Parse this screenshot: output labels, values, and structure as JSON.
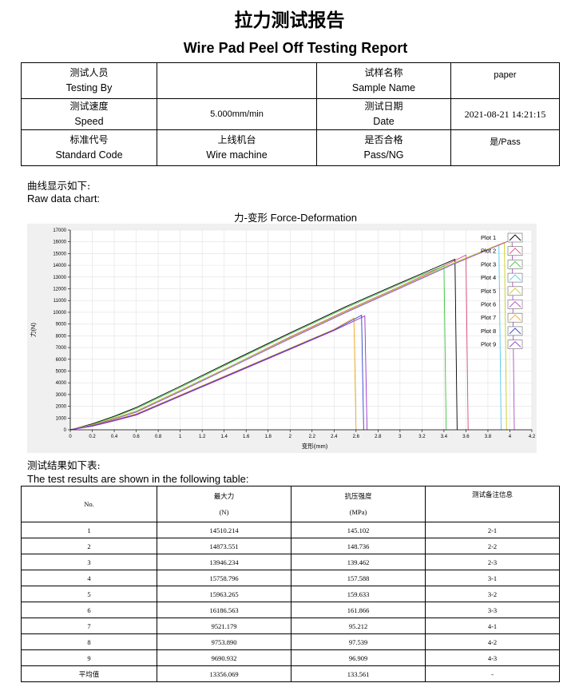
{
  "report": {
    "title_cn": "拉力测试报告",
    "title_en": "Wire Pad Peel Off Testing Report"
  },
  "info": {
    "tester_label_cn": "测试人员",
    "tester_label_en": "Testing By",
    "tester_value": "",
    "sample_label_cn": "试样名称",
    "sample_label_en": "Sample Name",
    "sample_value": "paper",
    "speed_label_cn": "测试速度",
    "speed_label_en": "Speed",
    "speed_value": "5.000mm/min",
    "date_label_cn": "测试日期",
    "date_label_en": "Date",
    "date_value": "2021-08-21 14:21:15",
    "code_label_cn": "标准代号",
    "code_label_en": "Standard Code",
    "machine_label_cn": "上线机台",
    "machine_label_en": "Wire machine",
    "pass_label_cn": "是否合格",
    "pass_label_en": "Pass/NG",
    "pass_value": "是/Pass"
  },
  "sections": {
    "chart_heading_cn": "曲线显示如下:",
    "chart_heading_en": "Raw data chart:",
    "table_heading_cn": "测试结果如下表:",
    "table_heading_en": "The test results are shown in the following table:"
  },
  "chart_data": {
    "type": "line",
    "title_cn": "力-变形",
    "title_en": "Force-Deformation",
    "xlabel": "变形(mm)",
    "ylabel": "力(N)",
    "xlim": [
      0,
      4.2
    ],
    "ylim": [
      0,
      17000
    ],
    "x_ticks": [
      "0",
      "0.2",
      "0.4",
      "0.6",
      "0.8",
      "1",
      "1.2",
      "1.4",
      "1.6",
      "1.8",
      "2",
      "2.2",
      "2.4",
      "2.6",
      "2.8",
      "3",
      "3.2",
      "3.4",
      "3.6",
      "3.8",
      "4",
      "4.2"
    ],
    "y_ticks": [
      "0",
      "1000",
      "2000",
      "3000",
      "4000",
      "5000",
      "6000",
      "7000",
      "8000",
      "9000",
      "10000",
      "11000",
      "12000",
      "13000",
      "14000",
      "15000",
      "16000",
      "17000"
    ],
    "grid": true,
    "legend_position": "top-right",
    "series": [
      {
        "name": "Plot 1",
        "color": "#000000",
        "x": [
          0,
          0.2,
          0.4,
          0.6,
          1.0,
          1.5,
          2.0,
          2.5,
          3.0,
          3.3,
          3.5
        ],
        "y": [
          0,
          500,
          1150,
          1900,
          3700,
          6000,
          8250,
          10450,
          12500,
          13700,
          14510
        ]
      },
      {
        "name": "Plot 2",
        "color": "#e0457b",
        "x": [
          0,
          0.2,
          0.4,
          0.6,
          1.0,
          1.5,
          2.0,
          2.5,
          3.0,
          3.3,
          3.6
        ],
        "y": [
          0,
          400,
          1000,
          1600,
          3350,
          5600,
          7900,
          10100,
          12200,
          13500,
          14874
        ]
      },
      {
        "name": "Plot 3",
        "color": "#3cc43c",
        "x": [
          0,
          0.2,
          0.4,
          0.6,
          1.0,
          1.5,
          2.0,
          2.5,
          3.0,
          3.2,
          3.4
        ],
        "y": [
          0,
          450,
          1100,
          1800,
          3600,
          5900,
          8150,
          10350,
          12400,
          13200,
          13946
        ]
      },
      {
        "name": "Plot 4",
        "color": "#4ec8e8",
        "x": [
          0,
          0.2,
          0.4,
          0.6,
          1.0,
          1.5,
          2.0,
          2.5,
          3.0,
          3.5,
          3.9
        ],
        "y": [
          0,
          400,
          950,
          1550,
          3300,
          5550,
          7800,
          10000,
          12100,
          14200,
          15759
        ]
      },
      {
        "name": "Plot 5",
        "color": "#c8cc1e",
        "x": [
          0,
          0.2,
          0.4,
          0.6,
          1.0,
          1.5,
          2.0,
          2.5,
          3.0,
          3.5,
          3.95
        ],
        "y": [
          0,
          420,
          980,
          1600,
          3350,
          5600,
          7850,
          10050,
          12150,
          14250,
          15963
        ]
      },
      {
        "name": "Plot 6",
        "color": "#b04cc8",
        "x": [
          0,
          0.2,
          0.4,
          0.6,
          1.0,
          1.5,
          2.0,
          2.5,
          3.0,
          3.5,
          4.02
        ],
        "y": [
          0,
          380,
          920,
          1500,
          3250,
          5500,
          7750,
          9950,
          12050,
          14150,
          16187
        ]
      },
      {
        "name": "Plot 7",
        "color": "#e6a820",
        "x": [
          0,
          0.2,
          0.4,
          0.6,
          1.0,
          1.5,
          2.0,
          2.4,
          2.58
        ],
        "y": [
          0,
          350,
          850,
          1350,
          2950,
          4950,
          6950,
          8550,
          9521
        ]
      },
      {
        "name": "Plot 8",
        "color": "#2a3ed0",
        "x": [
          0,
          0.2,
          0.4,
          0.6,
          1.0,
          1.5,
          2.0,
          2.4,
          2.65
        ],
        "y": [
          0,
          330,
          800,
          1300,
          2900,
          4900,
          6900,
          8500,
          9754
        ]
      },
      {
        "name": "Plot 9",
        "color": "#9a30c8",
        "x": [
          0,
          0.2,
          0.4,
          0.6,
          1.0,
          1.5,
          2.0,
          2.4,
          2.68
        ],
        "y": [
          0,
          300,
          760,
          1250,
          2850,
          4850,
          6850,
          8450,
          9691
        ]
      }
    ]
  },
  "results": {
    "header": {
      "no": "No.",
      "max_force_cn": "最大力",
      "max_force_unit": "(N)",
      "strength_cn": "抗压强度",
      "strength_unit": "(MPa)",
      "remark_cn": "测试备注信息"
    },
    "rows": [
      {
        "no": "1",
        "force": "14510.214",
        "strength": "145.102",
        "remark": "2-1"
      },
      {
        "no": "2",
        "force": "14873.551",
        "strength": "148.736",
        "remark": "2-2"
      },
      {
        "no": "3",
        "force": "13946.234",
        "strength": "139.462",
        "remark": "2-3"
      },
      {
        "no": "4",
        "force": "15758.796",
        "strength": "157.588",
        "remark": "3-1"
      },
      {
        "no": "5",
        "force": "15963.265",
        "strength": "159.633",
        "remark": "3-2"
      },
      {
        "no": "6",
        "force": "16186.563",
        "strength": "161.866",
        "remark": "3-3"
      },
      {
        "no": "7",
        "force": "9521.179",
        "strength": "95.212",
        "remark": "4-1"
      },
      {
        "no": "8",
        "force": "9753.890",
        "strength": "97.539",
        "remark": "4-2"
      },
      {
        "no": "9",
        "force": "9690.932",
        "strength": "96.909",
        "remark": "4-3"
      },
      {
        "no": "平均值",
        "force": "13356.069",
        "strength": "133.561",
        "remark": "-"
      }
    ]
  }
}
